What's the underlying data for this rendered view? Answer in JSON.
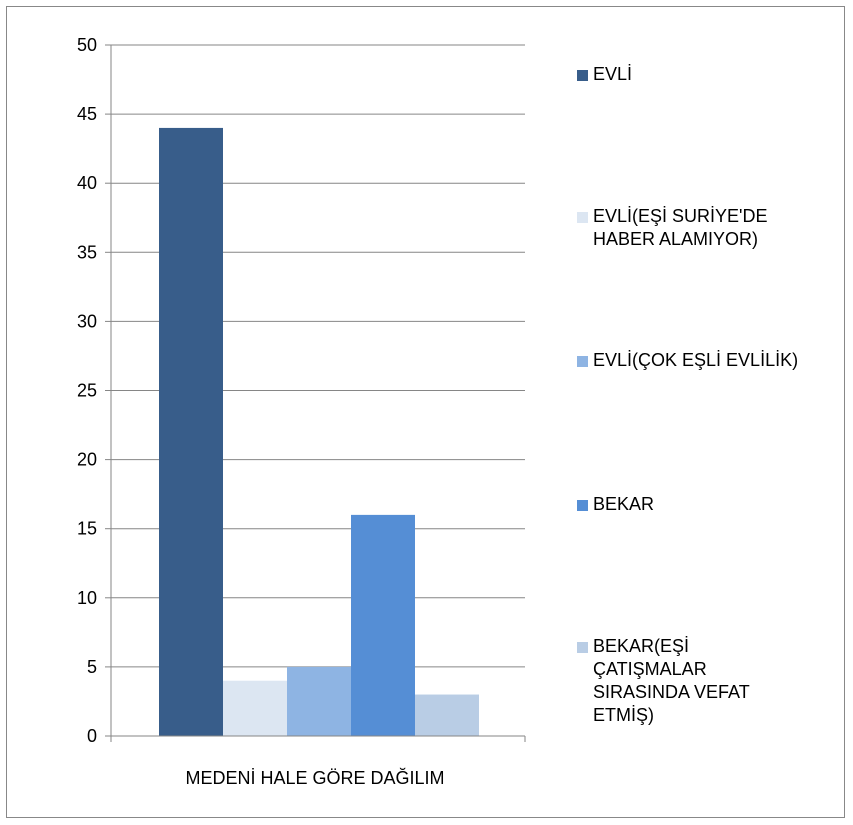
{
  "chart_data": {
    "type": "bar",
    "categories": [
      "MEDENİ HALE GÖRE DAĞILIM"
    ],
    "series": [
      {
        "name": "EVLİ",
        "values": [
          44
        ],
        "color": "#385d8a"
      },
      {
        "name": "EVLİ(EŞİ SURİYE'DE\nHABER ALAMIYOR)",
        "values": [
          4
        ],
        "color": "#dce6f2"
      },
      {
        "name": "EVLİ(ÇOK EŞLİ EVLİLİK)",
        "values": [
          5
        ],
        "color": "#8eb4e3"
      },
      {
        "name": "BEKAR",
        "values": [
          16
        ],
        "color": "#558ed5"
      },
      {
        "name": "BEKAR(EŞİ\nÇATIŞMALAR\nSIRASINDA VEFAT\nETMİŞ)",
        "values": [
          3
        ],
        "color": "#b9cde5"
      }
    ],
    "ylim": [
      0,
      50
    ],
    "yticks": [
      0,
      5,
      10,
      15,
      20,
      25,
      30,
      35,
      40,
      45,
      50
    ],
    "ytick_labels": [
      "0",
      "5",
      "10",
      "15",
      "20",
      "25",
      "30",
      "35",
      "40",
      "45",
      "50"
    ],
    "grid": true,
    "legend": "right",
    "gridline_color": "#868686"
  }
}
